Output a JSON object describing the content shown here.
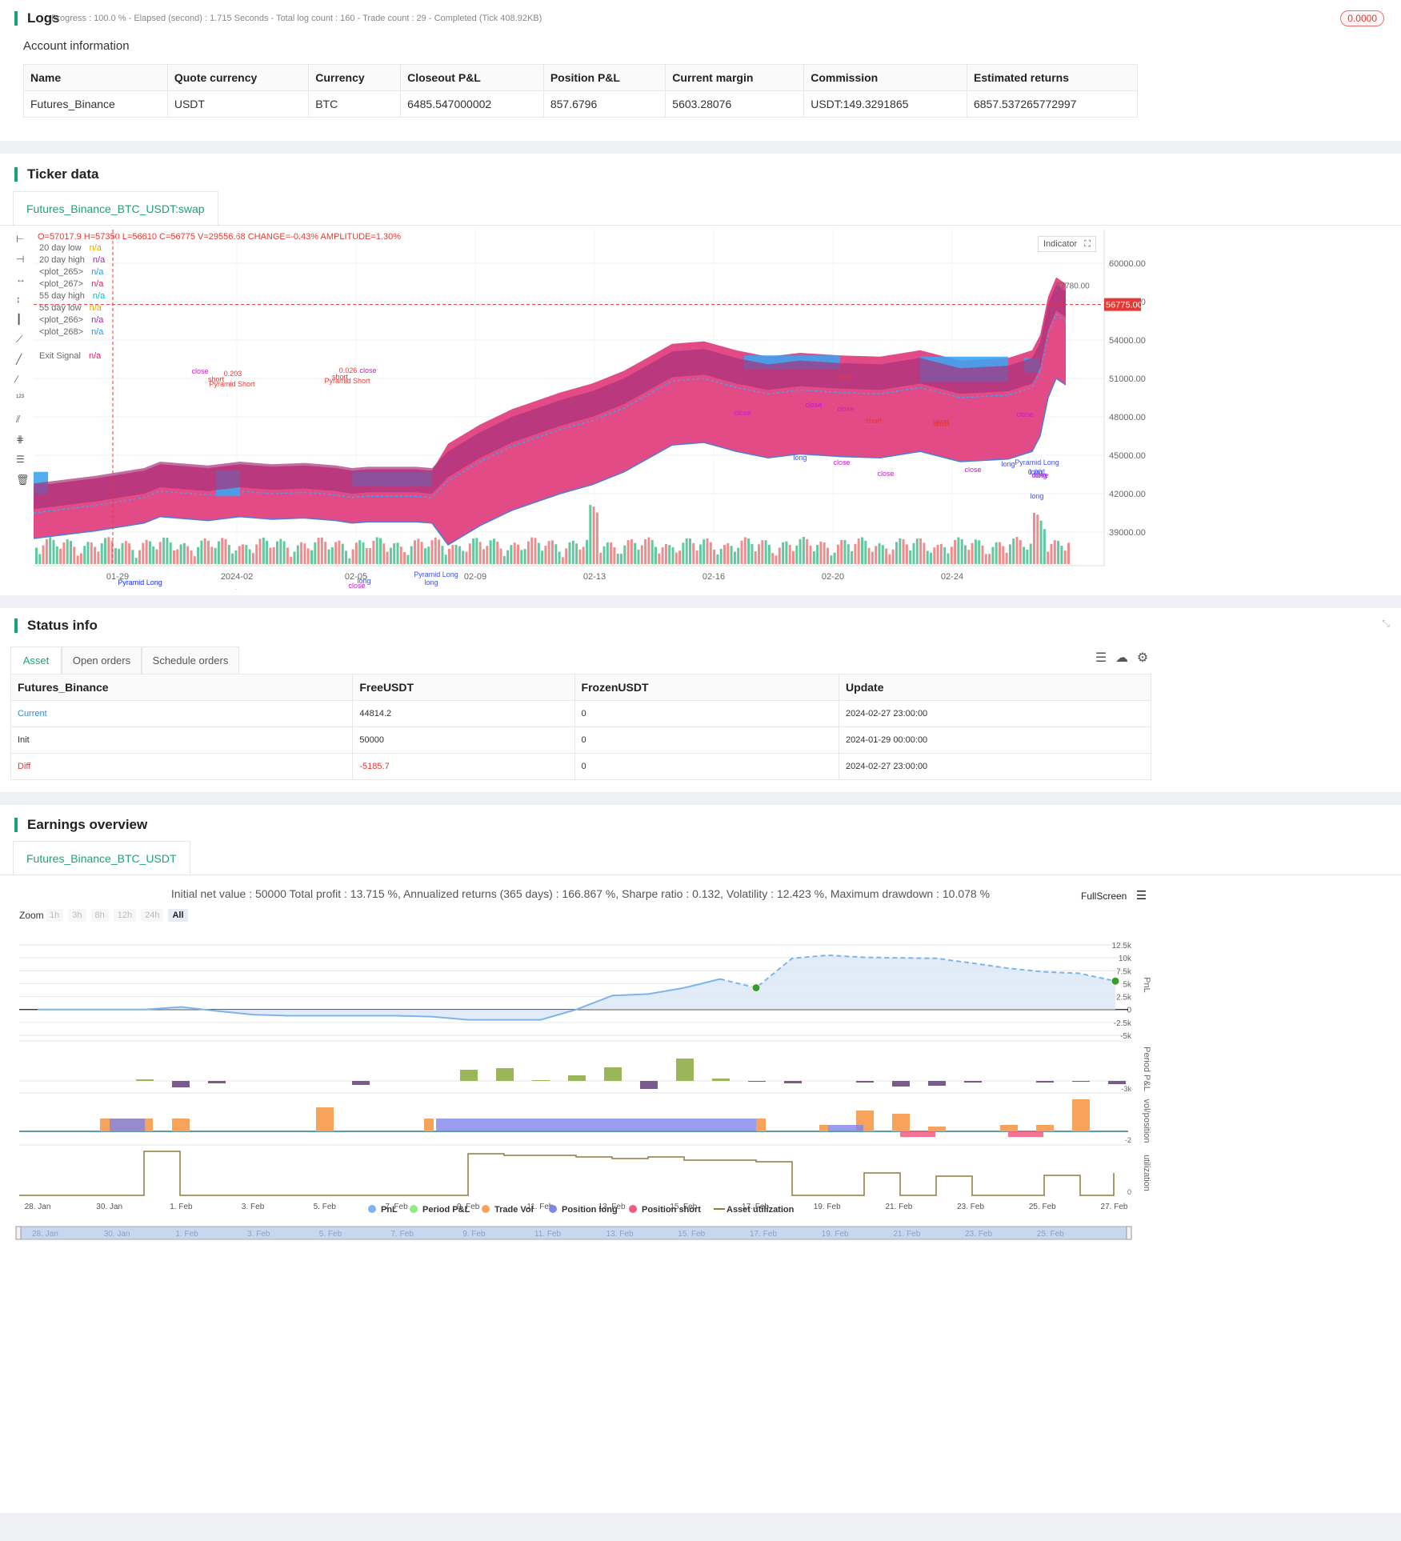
{
  "logs": {
    "title": "Logs",
    "summary": "Progress : 100.0 % - Elapsed (second) : 1.715  Seconds - Total log count : 160 - Trade count : 29 - Completed (Tick 408.92KB)",
    "badge": "0.0000"
  },
  "account": {
    "title": "Account information",
    "columns": [
      "Name",
      "Quote currency",
      "Currency",
      "Closeout P&L",
      "Position P&L",
      "Current margin",
      "Commission",
      "Estimated returns"
    ],
    "row": [
      "Futures_Binance",
      "USDT",
      "BTC",
      "6485.547000002",
      "857.6796",
      "5603.28076",
      "USDT:149.3291865",
      "6857.537265772997"
    ]
  },
  "ticker": {
    "title": "Ticker data",
    "tab": "Futures_Binance_BTC_USDT:swap",
    "ohlc": "O=57017.9 H=57350 L=56610 C=56775 V=29556.68 CHANGE=-0.43% AMPLITUDE=1.30%",
    "legend": [
      {
        "name": "20 day low",
        "value": "n/a",
        "color": "#e8a400"
      },
      {
        "name": "20 day high",
        "value": "n/a",
        "color": "#9c27b0"
      },
      {
        "name": "<plot_265>",
        "value": "n/a",
        "color": "#2196f3"
      },
      {
        "name": "<plot_267>",
        "value": "n/a",
        "color": "#e91e63"
      },
      {
        "name": "55 day high",
        "value": "n/a",
        "color": "#00bcd4"
      },
      {
        "name": "55 day low",
        "value": "n/a",
        "color": "#e8a400"
      },
      {
        "name": "<plot_266>",
        "value": "n/a",
        "color": "#9c27b0"
      },
      {
        "name": "<plot_268>",
        "value": "n/a",
        "color": "#2196f3"
      },
      {
        "name": "Exit Signal",
        "value": "n/a",
        "color": "#e91e63"
      }
    ],
    "indicator_btn": "Indicator",
    "price_labels": [
      "60000.00",
      "57000.00",
      "54000.00",
      "51000.00",
      "48000.00",
      "45000.00",
      "42000.00",
      "39000.00"
    ],
    "last_price": "56775.00",
    "high_marker": "57780.00",
    "date_labels": [
      "01-29",
      "2024-02",
      "02-05",
      "02-09",
      "02-13",
      "02-16",
      "02-20",
      "02-24"
    ],
    "trade_labels": [
      {
        "t": "short",
        "c": "#e53935"
      },
      {
        "t": "close",
        "c": "#c51fc5"
      },
      {
        "t": "close",
        "c": "#c51fc5"
      },
      {
        "t": "close",
        "c": "#c51fc5"
      },
      {
        "t": "short",
        "c": "#e53935"
      },
      {
        "t": "long",
        "c": "#3f51ff"
      },
      {
        "t": "close",
        "c": "#c51fc5"
      },
      {
        "t": "close",
        "c": "#c51fc5"
      },
      {
        "t": "long",
        "c": "#3f51ff"
      },
      {
        "t": "Pyramid Long",
        "c": "#3f51ff"
      },
      {
        "t": "long",
        "c": "#3f51ff"
      },
      {
        "t": "close",
        "c": "#c51fc5"
      },
      {
        "t": "0.203",
        "c": "#e53935"
      },
      {
        "t": "short",
        "c": "#e53935"
      },
      {
        "t": "Pyramid Short",
        "c": "#e53935"
      },
      {
        "t": "close",
        "c": "#c51fc5"
      },
      {
        "t": "0.026",
        "c": "#e53935"
      },
      {
        "t": "short",
        "c": "#e53935"
      },
      {
        "t": "Pyramid Short",
        "c": "#e53935"
      },
      {
        "t": "close",
        "c": "#c51fc5"
      },
      {
        "t": "long",
        "c": "#3f51ff"
      },
      {
        "t": "close",
        "c": "#c51fc5"
      },
      {
        "t": "Pyramid Long",
        "c": "#3f51ff"
      },
      {
        "t": "long",
        "c": "#3f51ff"
      },
      {
        "t": "Pyramid Long",
        "c": "#3f51ff"
      },
      {
        "t": "Pyramid Long",
        "c": "#3f51ff"
      },
      {
        "t": "long",
        "c": "#3f51ff"
      },
      {
        "t": "close",
        "c": "#c51fc5"
      },
      {
        "t": "short",
        "c": "#e53935"
      },
      {
        "t": "long",
        "c": "#3f51ff"
      },
      {
        "t": "close",
        "c": "#c51fc5"
      },
      {
        "t": "short",
        "c": "#e53935"
      },
      {
        "t": "close",
        "c": "#c51fc5"
      },
      {
        "t": "0.001",
        "c": "#3f51ff"
      },
      {
        "t": "long",
        "c": "#3f51ff"
      },
      {
        "t": "close",
        "c": "#c51fc5"
      }
    ]
  },
  "status": {
    "title": "Status info",
    "tabs": [
      "Asset",
      "Open orders",
      "Schedule orders"
    ],
    "columns": [
      "Futures_Binance",
      "FreeUSDT",
      "FrozenUSDT",
      "Update"
    ],
    "rows": [
      [
        "Current",
        "44814.2",
        "0",
        "2024-02-27 23:00:00"
      ],
      [
        "Init",
        "50000",
        "0",
        "2024-01-29 00:00:00"
      ],
      [
        "Diff",
        "-5185.7",
        "0",
        "2024-02-27 23:00:00"
      ]
    ]
  },
  "earnings": {
    "title": "Earnings overview",
    "tab": "Futures_Binance_BTC_USDT",
    "summary": "Initial net value : 50000 Total profit : 13.715 %, Annualized returns (365 days) : 166.867 %, Sharpe ratio : 0.132, Volatility : 12.423 %, Maximum drawdown : 10.078 %",
    "fullscreen": "FullScreen",
    "zoom_label": "Zoom",
    "zoom_options": [
      "1h",
      "3h",
      "8h",
      "12h",
      "24h",
      "All"
    ],
    "pnl_ticks": [
      "12.5k",
      "10k",
      "7.5k",
      "5k",
      "2.5k",
      "0",
      "-2.5k",
      "-5k"
    ],
    "axis_titles": [
      "PnL",
      "Period P&L",
      "vol/position",
      "utilization"
    ],
    "small_ticks": [
      "-3k",
      "-2",
      "0"
    ],
    "date_labels": [
      "28. Jan",
      "30. Jan",
      "1. Feb",
      "3. Feb",
      "5. Feb",
      "7. Feb",
      "9. Feb",
      "11. Feb",
      "13. Feb",
      "15. Feb",
      "17. Feb",
      "19. Feb",
      "21. Feb",
      "23. Feb",
      "25. Feb",
      "27. Feb"
    ],
    "legend": [
      {
        "name": "PnL",
        "color": "#7cb5ec"
      },
      {
        "name": "Period P&L",
        "color": "#90ed7d"
      },
      {
        "name": "Trade Vol",
        "color": "#f7a35c"
      },
      {
        "name": "Position long",
        "color": "#8085e9"
      },
      {
        "name": "Position short",
        "color": "#f15c80"
      },
      {
        "name": "Asset utilization",
        "color": "#8d7a3c"
      }
    ],
    "navigator_labels": [
      "28. Jan",
      "30. Jan",
      "1. Feb",
      "3. Feb",
      "5. Feb",
      "7. Feb",
      "9. Feb",
      "11. Feb",
      "13. Feb",
      "15. Feb",
      "17. Feb",
      "19. Feb",
      "21. Feb",
      "23. Feb",
      "25. Feb"
    ]
  },
  "chart_data": {
    "type": "line",
    "title": "",
    "xlabel": "",
    "ylabel": "PnL",
    "x": [
      "28. Jan",
      "29. Jan",
      "30. Jan",
      "31. Jan",
      "1. Feb",
      "2. Feb",
      "3. Feb",
      "4. Feb",
      "5. Feb",
      "6. Feb",
      "7. Feb",
      "8. Feb",
      "9. Feb",
      "10. Feb",
      "11. Feb",
      "12. Feb",
      "13. Feb",
      "14. Feb",
      "15. Feb",
      "16. Feb",
      "17. Feb",
      "18. Feb",
      "19. Feb",
      "20. Feb",
      "21. Feb",
      "22. Feb",
      "23. Feb",
      "24. Feb",
      "25. Feb",
      "26. Feb",
      "27. Feb"
    ],
    "series": [
      {
        "name": "PnL",
        "values": [
          0,
          0,
          0,
          0,
          500,
          -300,
          -1000,
          -1200,
          -1200,
          -1200,
          -1200,
          -1400,
          -2000,
          -2000,
          -2000,
          0,
          2700,
          3000,
          4200,
          5900,
          4200,
          9900,
          10500,
          10100,
          10000,
          9900,
          9000,
          8000,
          7300,
          7000,
          5500
        ]
      }
    ],
    "ylim": [
      -5000,
      12500
    ],
    "grid": true,
    "legend_position": "bottom"
  }
}
